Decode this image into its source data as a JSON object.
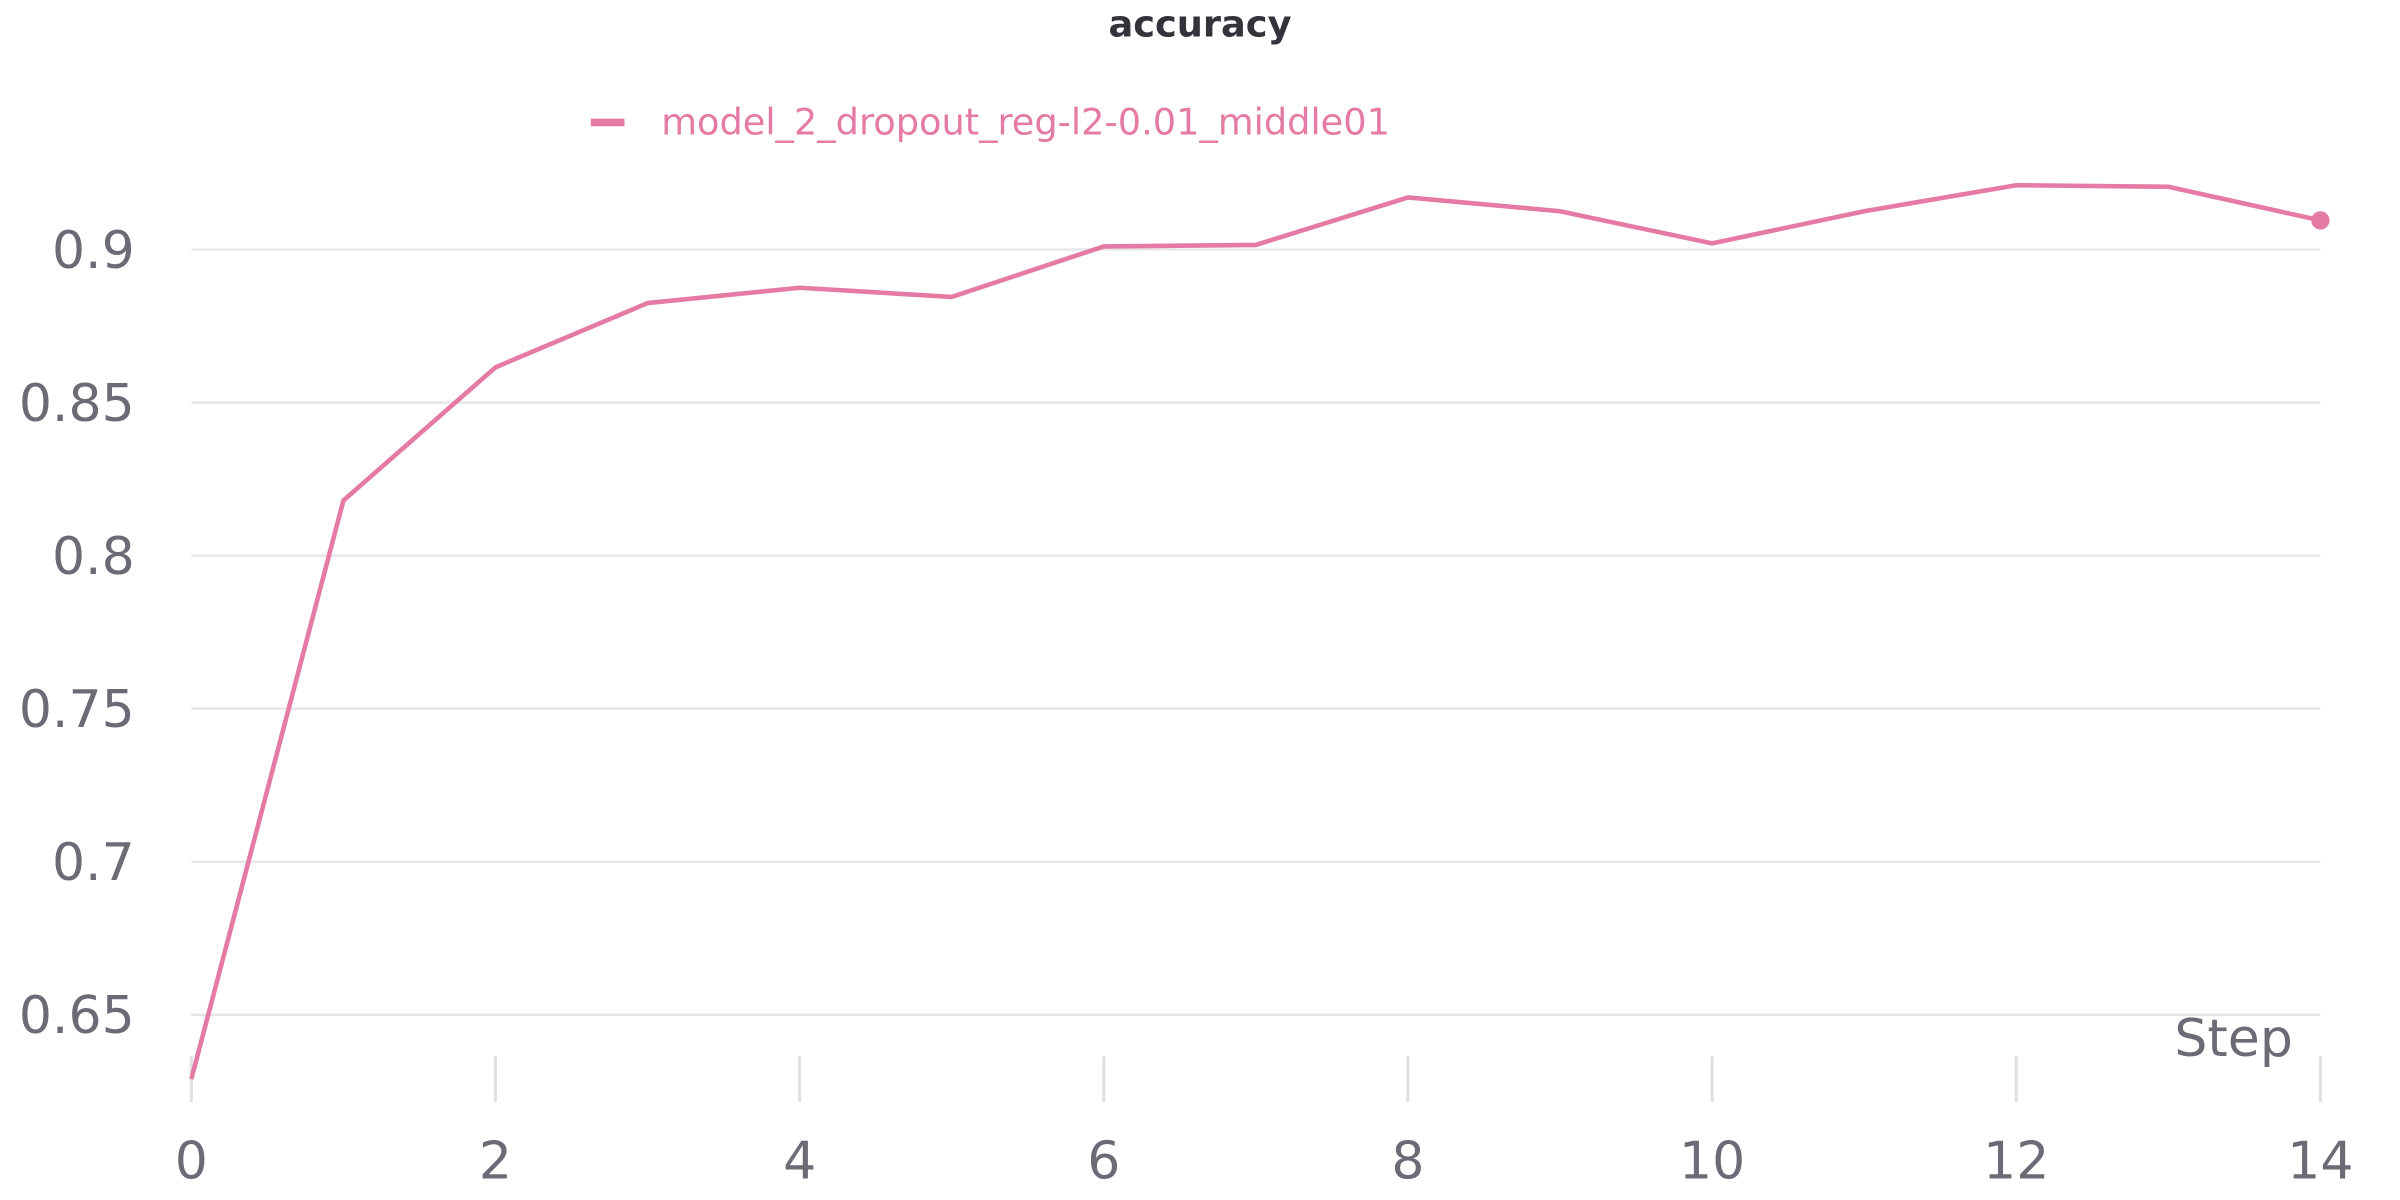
{
  "chart_data": {
    "type": "line",
    "title": "accuracy",
    "x_label": "Step",
    "x": [
      0,
      1,
      2,
      3,
      4,
      5,
      6,
      7,
      8,
      9,
      10,
      11,
      12,
      13,
      14
    ],
    "series": [
      {
        "name": "model_2_dropout_reg-l2-0.01_middle01",
        "color": "#e57ba4",
        "values": [
          0.629,
          0.818,
          0.8615,
          0.8825,
          0.8875,
          0.8845,
          0.901,
          0.9015,
          0.917,
          0.9125,
          0.902,
          0.9125,
          0.921,
          0.9205,
          0.9095
        ]
      }
    ],
    "xlim": [
      0,
      14
    ],
    "xticks": [
      0,
      2,
      4,
      6,
      8,
      10,
      12,
      14
    ],
    "ylim": [
      0.62,
      0.925
    ],
    "yticks": [
      0.65,
      0.7,
      0.75,
      0.8,
      0.85,
      0.9
    ],
    "grid": true
  }
}
